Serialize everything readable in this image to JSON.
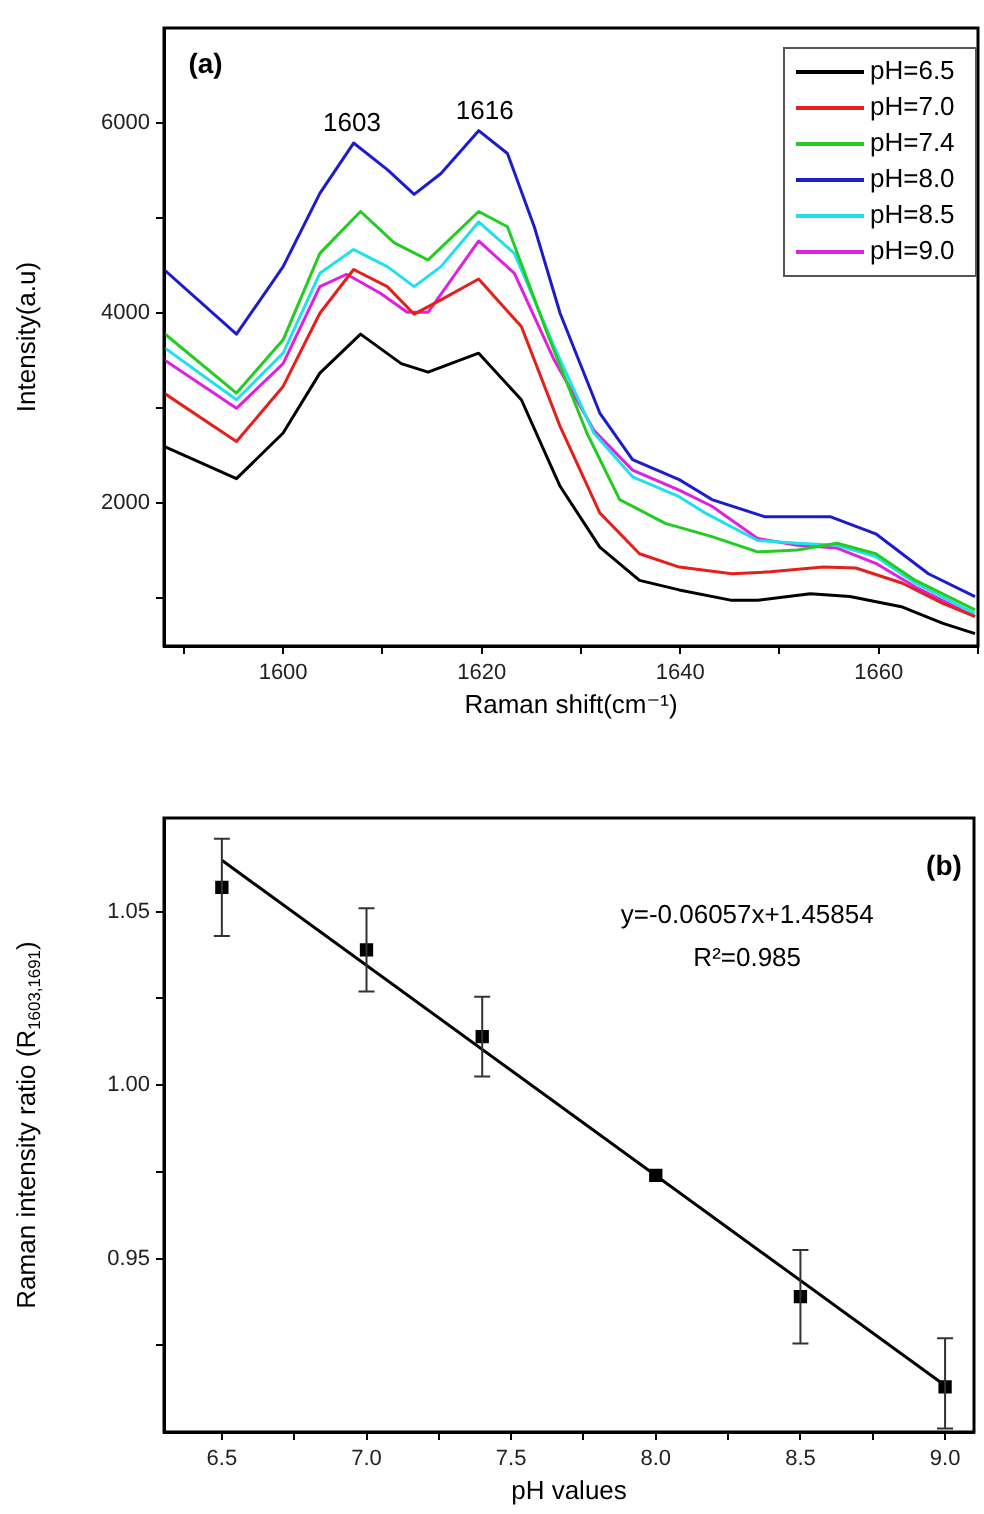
{
  "chart_data": [
    {
      "type": "line",
      "xlabel": "Raman shift(cm⁻¹)",
      "ylabel": "Intensity(a.u)",
      "xlim": [
        1588,
        1670
      ],
      "ylim": [
        500,
        7000
      ],
      "xticks": [
        {
          "value": 1590,
          "label": null
        },
        1600,
        {
          "value": 1610,
          "label": null
        },
        1620,
        {
          "value": 1630,
          "label": null
        },
        1640,
        {
          "value": 1650,
          "label": null
        },
        1660,
        {
          "value": 1670,
          "label": null
        }
      ],
      "yticks": [
        {
          "value": 1000,
          "label": null
        },
        2000,
        {
          "value": 3000,
          "label": null
        },
        4000,
        {
          "value": 5000,
          "label": null
        },
        6000
      ],
      "legend": "top right",
      "annotations": [
        "(a)",
        "1603",
        "1616"
      ],
      "series": [
        {
          "name": "pH=6.5",
          "color": "#000000",
          "x": [
            1588,
            1595.3,
            1600,
            1603.7,
            1607.8,
            1611.9,
            1614.6,
            1619.7,
            1624,
            1627.9,
            1631.9,
            1635.9,
            1639.9,
            1645.2,
            1647.8,
            1653.1,
            1657.1,
            1662.4,
            1666.4,
            1669.7
          ],
          "values": [
            2600,
            2260,
            2740,
            3370,
            3780,
            3470,
            3380,
            3580,
            3090,
            2180,
            1540,
            1190,
            1090,
            980,
            980,
            1050,
            1020,
            910,
            740,
            630
          ]
        },
        {
          "name": "pH=7.0",
          "color": "#e3201b",
          "x": [
            1588,
            1595.3,
            1600,
            1603.7,
            1607.1,
            1610.5,
            1613.2,
            1615.9,
            1619.7,
            1624,
            1627.9,
            1631.9,
            1635.9,
            1639.9,
            1645.2,
            1649.1,
            1654.4,
            1657.7,
            1662.4,
            1666.4,
            1669.7
          ],
          "values": [
            3160,
            2650,
            3230,
            4000,
            4460,
            4280,
            3990,
            4140,
            4360,
            3860,
            2810,
            1900,
            1470,
            1330,
            1260,
            1280,
            1330,
            1320,
            1160,
            950,
            810
          ]
        },
        {
          "name": "pH=7.4",
          "color": "#22cc22",
          "x": [
            1588,
            1595.3,
            1600,
            1603.7,
            1607.8,
            1611.2,
            1614.6,
            1619.7,
            1622.6,
            1626.6,
            1630.6,
            1633.9,
            1638.5,
            1643.2,
            1647.8,
            1651.8,
            1655.8,
            1659.7,
            1663.7,
            1669.7
          ],
          "values": [
            3790,
            3160,
            3720,
            4630,
            5070,
            4740,
            4560,
            5070,
            4910,
            3790,
            2740,
            2040,
            1790,
            1650,
            1490,
            1510,
            1580,
            1470,
            1190,
            880
          ]
        },
        {
          "name": "pH=8.0",
          "color": "#1c1ccc",
          "x": [
            1588,
            1595.3,
            1600,
            1603.7,
            1607.1,
            1610.5,
            1613.2,
            1615.9,
            1619.7,
            1622.6,
            1625.3,
            1627.9,
            1631.9,
            1635.2,
            1639.9,
            1643.2,
            1648.5,
            1655.1,
            1659.7,
            1665,
            1669.7
          ],
          "values": [
            4460,
            3780,
            4490,
            5260,
            5790,
            5510,
            5250,
            5470,
            5920,
            5680,
            4910,
            4000,
            2950,
            2460,
            2250,
            2040,
            1860,
            1860,
            1680,
            1260,
            1020
          ]
        },
        {
          "name": "pH=8.5",
          "color": "#22e0ea",
          "x": [
            1588,
            1595.3,
            1600,
            1603.7,
            1607.1,
            1610.5,
            1613.2,
            1615.9,
            1619.7,
            1623.3,
            1627.3,
            1631.3,
            1635.2,
            1639.9,
            1642.5,
            1647.8,
            1651.8,
            1655.8,
            1659.7,
            1663.7,
            1669.7
          ],
          "values": [
            3640,
            3090,
            3580,
            4420,
            4670,
            4490,
            4280,
            4490,
            4960,
            4630,
            3650,
            2740,
            2280,
            2070,
            1900,
            1610,
            1580,
            1560,
            1440,
            1160,
            840
          ]
        },
        {
          "name": "pH=9.0",
          "color": "#e020e0",
          "x": [
            1588,
            1595.3,
            1600,
            1603.7,
            1606.4,
            1609.8,
            1612.5,
            1614.6,
            1619.7,
            1623.3,
            1627.3,
            1631.3,
            1635.2,
            1639.9,
            1643.2,
            1647.8,
            1651.8,
            1655.8,
            1659.7,
            1663.7,
            1669.7
          ],
          "values": [
            3510,
            3000,
            3470,
            4280,
            4410,
            4210,
            4010,
            4010,
            4760,
            4420,
            3510,
            2770,
            2350,
            2140,
            1970,
            1630,
            1560,
            1530,
            1370,
            1120,
            810
          ]
        }
      ]
    },
    {
      "type": "scatter",
      "xlabel": "pH values",
      "ylabel": "Raman intensity ratio (R$_{1603,1691}$)",
      "xlim": [
        6.3,
        9.1
      ],
      "ylim": [
        0.9,
        1.077
      ],
      "xticks": [
        6.5,
        {
          "value": 6.75,
          "label": null
        },
        {
          "value": 7,
          "label": "7.0"
        },
        {
          "value": 7.25,
          "label": null
        },
        7.5,
        {
          "value": 7.75,
          "label": null
        },
        {
          "value": 8,
          "label": "8.0"
        },
        {
          "value": 8.25,
          "label": null
        },
        8.5,
        {
          "value": 8.75,
          "label": null
        },
        {
          "value": 9,
          "label": "9.0"
        }
      ],
      "yticks": [
        {
          "value": 0.925,
          "label": null
        },
        0.95,
        {
          "value": 0.975,
          "label": null
        },
        {
          "value": 1,
          "label": "1.00"
        },
        {
          "value": 1.025,
          "label": null
        },
        1.05
      ],
      "annotations": [
        "(b)",
        "y=-0.06057x+1.45854",
        "R²=0.985"
      ],
      "series": [
        {
          "color": "#000000",
          "marker": "square",
          "x": [
            6.5,
            7.0,
            7.4,
            8.0,
            8.5,
            9.0
          ],
          "values": [
            1.057,
            1.039,
            1.014,
            0.974,
            0.939,
            0.913
          ],
          "errors": [
            0.014,
            0.012,
            0.0115,
            null,
            0.0135,
            [
              0.901,
              0.927
            ]
          ]
        },
        {
          "type": "line",
          "color": "#000000",
          "x": [
            6.5,
            9.0
          ],
          "values": [
            1.0648,
            0.9134
          ]
        }
      ]
    }
  ]
}
